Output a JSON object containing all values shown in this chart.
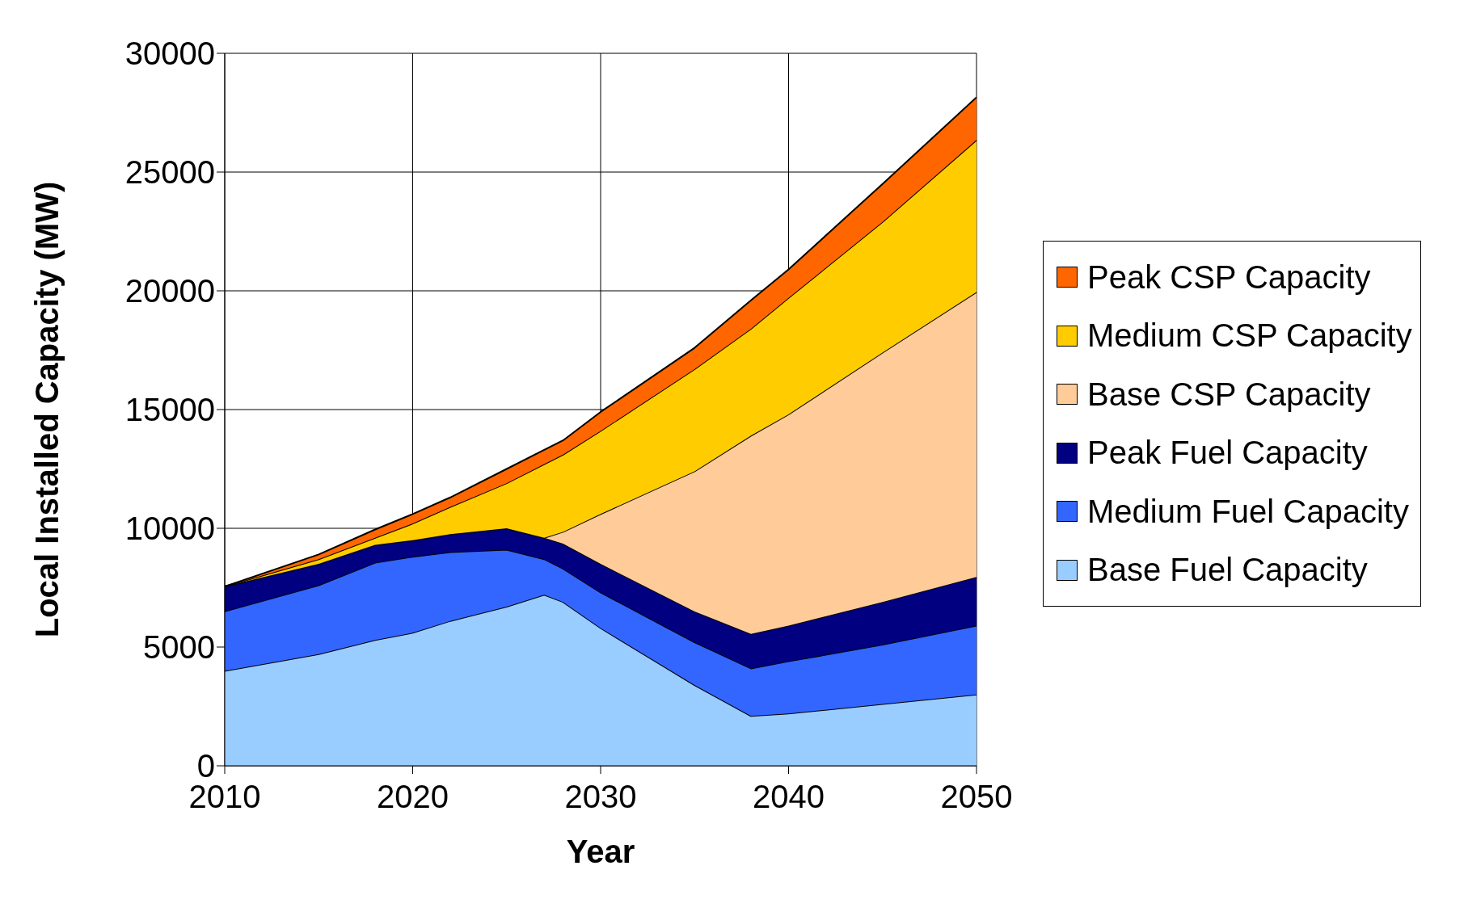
{
  "chart_data": {
    "type": "area",
    "stacked": true,
    "xlabel": "Year",
    "ylabel": "Local Installed Capacity (MW)",
    "x": [
      2010,
      2015,
      2018,
      2020,
      2022,
      2025,
      2027,
      2028,
      2030,
      2035,
      2038,
      2040,
      2045,
      2050
    ],
    "xlim": [
      2010,
      2050
    ],
    "xticks": [
      2010,
      2020,
      2030,
      2040,
      2050
    ],
    "ylim": [
      0,
      30000
    ],
    "yticks": [
      0,
      5000,
      10000,
      15000,
      20000,
      25000,
      30000
    ],
    "grid": true,
    "legend": "right",
    "series": [
      {
        "name": "Base Fuel Capacity",
        "color": "#99ccff",
        "values": [
          4000,
          4700,
          5300,
          5600,
          6100,
          6700,
          7200,
          6900,
          5800,
          3400,
          2100,
          2200,
          2600,
          3000
        ]
      },
      {
        "name": "Medium Fuel Capacity",
        "color": "#3366ff",
        "values": [
          2500,
          2900,
          3250,
          3200,
          2900,
          2400,
          1500,
          1400,
          1500,
          1800,
          2000,
          2200,
          2500,
          2900
        ]
      },
      {
        "name": "Peak Fuel Capacity",
        "color": "#000080",
        "values": [
          1050,
          900,
          750,
          700,
          750,
          900,
          900,
          1050,
          1200,
          1300,
          1450,
          1500,
          1800,
          2050
        ]
      },
      {
        "name": "Base CSP Capacity",
        "color": "#ffcc99",
        "values": [
          0,
          0,
          0,
          0,
          0,
          0,
          0,
          500,
          2100,
          5900,
          8350,
          8900,
          10500,
          12000
        ]
      },
      {
        "name": "Medium CSP Capacity",
        "color": "#ffcc00",
        "values": [
          0,
          200,
          300,
          700,
          1150,
          1900,
          3100,
          3250,
          3500,
          4300,
          4500,
          4900,
          5500,
          6400
        ]
      },
      {
        "name": "Peak CSP Capacity",
        "color": "#ff6600",
        "values": [
          0,
          200,
          350,
          400,
          400,
          600,
          600,
          600,
          800,
          900,
          1200,
          1200,
          1600,
          1800
        ]
      }
    ]
  }
}
